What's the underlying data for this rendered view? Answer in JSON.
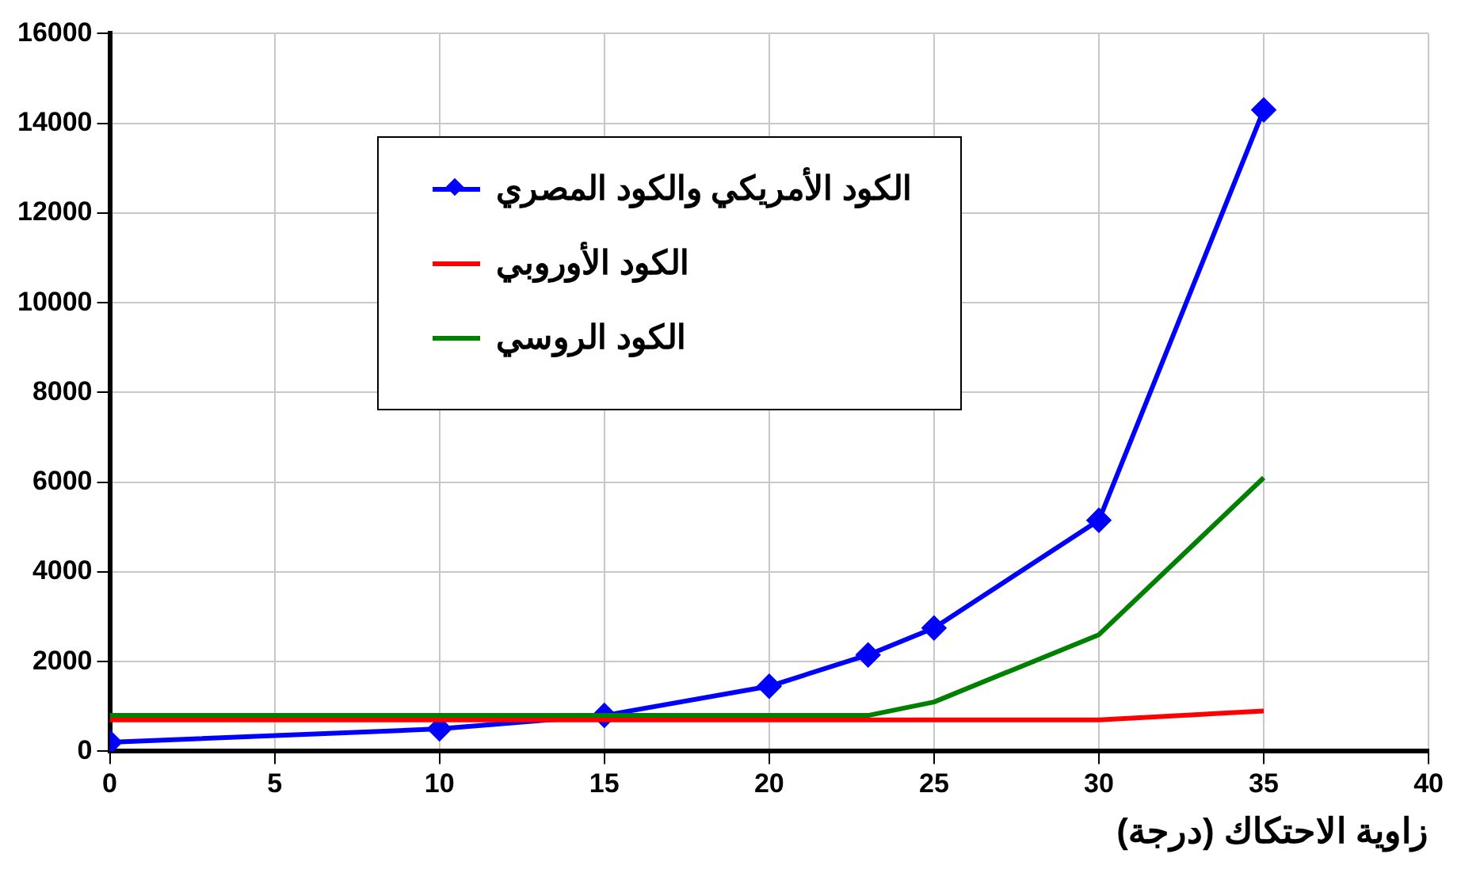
{
  "chart_data": {
    "type": "line",
    "xlabel": "زاوية الاحتكاك (درجة)",
    "x": [
      0,
      10,
      15,
      20,
      23,
      25,
      30,
      35
    ],
    "series": [
      {
        "name": "الكود الأمريكي والكود المصري",
        "color": "#0000ff",
        "marker": "diamond",
        "values": [
          200,
          500,
          800,
          1450,
          2150,
          2750,
          5150,
          14300
        ]
      },
      {
        "name": "الكود الأوروبي",
        "color": "#ff0000",
        "marker": "none",
        "values": [
          700,
          700,
          700,
          700,
          700,
          700,
          700,
          900
        ]
      },
      {
        "name": "الكود الروسي",
        "color": "#008000",
        "marker": "none",
        "values": [
          800,
          800,
          800,
          800,
          800,
          1100,
          2600,
          6100
        ]
      }
    ],
    "xlim": [
      0,
      40
    ],
    "xticks": [
      0,
      5,
      10,
      15,
      20,
      25,
      30,
      35,
      40
    ],
    "ylim": [
      0,
      16000
    ],
    "yticks": [
      0,
      2000,
      4000,
      6000,
      8000,
      10000,
      12000,
      14000,
      16000
    ],
    "grid": true,
    "legend": "top left",
    "line_style": "solid"
  }
}
